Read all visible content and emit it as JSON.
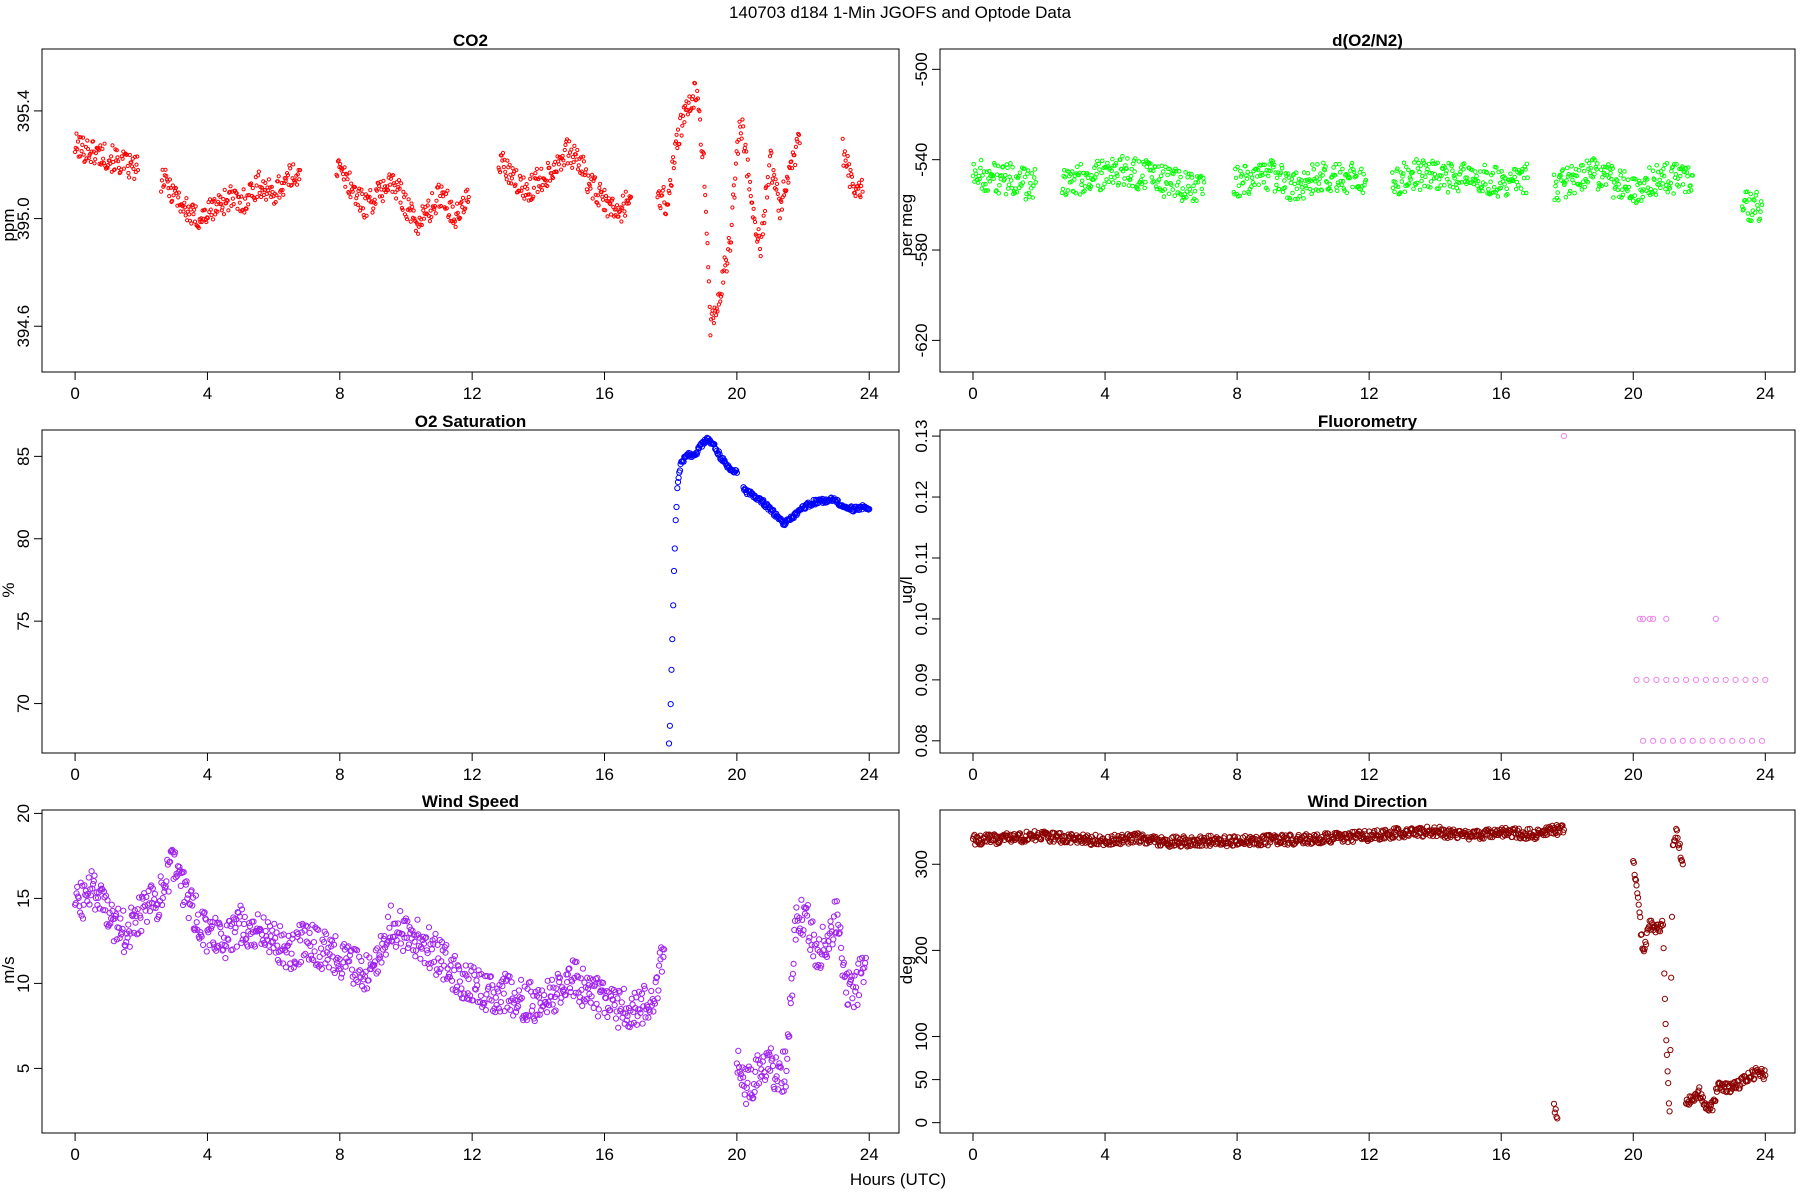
{
  "figure": {
    "title": "140703   d184   1-Min  JGOFS and Optode Data",
    "xlabel": "Hours (UTC)"
  },
  "chart_data": [
    {
      "id": "co2",
      "type": "scatter",
      "title": "CO2",
      "xlabel": "",
      "ylabel": "ppm",
      "xlim": [
        -1,
        24.9
      ],
      "ylim": [
        394.43,
        395.63
      ],
      "xticks": [
        0,
        4,
        8,
        12,
        16,
        20,
        24
      ],
      "yticks": [
        394.6,
        395.0,
        395.4
      ],
      "ytick_labels": [
        "394.6",
        "395.0",
        "395.4"
      ],
      "color": "#ff0000",
      "marker_size": 1.6,
      "series": [
        {
          "segments": [
            {
              "x": [
                0.0,
                0.5,
                1.0,
                1.5,
                1.9
              ],
              "y": [
                395.27,
                395.25,
                395.23,
                395.2,
                395.18
              ]
            },
            {
              "x": [
                2.6,
                3.0,
                3.3,
                3.6,
                3.9,
                4.3,
                4.7,
                5.0,
                5.3,
                5.6,
                5.9,
                6.2,
                6.5,
                6.8
              ],
              "y": [
                395.15,
                395.1,
                395.04,
                395.0,
                395.01,
                395.05,
                395.08,
                395.05,
                395.1,
                395.13,
                395.09,
                395.12,
                395.15,
                395.18
              ]
            },
            {
              "x": [
                7.9,
                8.3,
                8.7,
                9.1,
                9.5,
                9.9,
                10.3,
                10.7,
                11.1,
                11.5,
                11.9
              ],
              "y": [
                395.19,
                395.13,
                395.05,
                395.08,
                395.14,
                395.08,
                394.98,
                395.03,
                395.1,
                395.0,
                395.08
              ]
            },
            {
              "x": [
                12.8,
                13.2,
                13.6,
                14.0,
                14.4,
                14.8,
                15.2,
                15.6,
                16.0,
                16.4,
                16.8
              ],
              "y": [
                395.22,
                395.15,
                395.1,
                395.14,
                395.18,
                395.25,
                395.22,
                395.12,
                395.06,
                395.02,
                395.08
              ]
            },
            {
              "x": [
                17.6,
                17.9,
                18.2,
                18.5,
                18.8,
                19.0,
                19.2,
                19.5,
                19.8,
                20.1,
                20.4,
                20.7,
                21.0,
                21.3,
                21.6,
                21.9
              ],
              "y": [
                395.1,
                395.05,
                395.3,
                395.4,
                395.48,
                395.2,
                394.6,
                394.72,
                394.92,
                395.38,
                395.12,
                394.88,
                395.22,
                395.05,
                395.2,
                395.28
              ]
            },
            {
              "x": [
                23.2,
                23.5,
                23.8
              ],
              "y": [
                395.25,
                395.12,
                395.1
              ]
            }
          ]
        }
      ]
    },
    {
      "id": "o2n2",
      "type": "scatter",
      "title": "d(O2/N2)",
      "xlabel": "",
      "ylabel": "per meg",
      "xlim": [
        -1,
        24.9
      ],
      "ylim": [
        -634,
        -491
      ],
      "xticks": [
        0,
        4,
        8,
        12,
        16,
        20,
        24
      ],
      "yticks": [
        -620,
        -580,
        -540,
        -500
      ],
      "ytick_labels": [
        "-620",
        "-580",
        "-540",
        "-500"
      ],
      "color": "#00ff00",
      "marker_size": 1.8,
      "series": [
        {
          "segments": [
            {
              "x": [
                0.0,
                0.4,
                0.8,
                1.2,
                1.6,
                1.9
              ],
              "y": [
                -545,
                -547,
                -549,
                -548,
                -551,
                -550
              ]
            },
            {
              "x": [
                2.7,
                3.2,
                3.7,
                4.2,
                4.7,
                5.2,
                5.7,
                6.2,
                6.7,
                7.0
              ],
              "y": [
                -550,
                -549,
                -547,
                -546,
                -545,
                -547,
                -549,
                -551,
                -552,
                -550
              ]
            },
            {
              "x": [
                7.9,
                8.5,
                9.1,
                9.7,
                10.3,
                10.9,
                11.5,
                11.9
              ],
              "y": [
                -550,
                -548,
                -547,
                -552,
                -549,
                -547,
                -548,
                -549
              ]
            },
            {
              "x": [
                12.7,
                13.3,
                13.9,
                14.5,
                15.1,
                15.7,
                16.3,
                16.8
              ],
              "y": [
                -549,
                -547,
                -546,
                -548,
                -547,
                -550,
                -549,
                -548
              ]
            },
            {
              "x": [
                17.6,
                18.2,
                18.8,
                19.4,
                20.0,
                20.6,
                21.2,
                21.8
              ],
              "y": [
                -552,
                -548,
                -546,
                -550,
                -553,
                -549,
                -548,
                -547
              ]
            },
            {
              "x": [
                23.3,
                23.6,
                23.9
              ],
              "y": [
                -559,
                -561,
                -560
              ]
            }
          ]
        }
      ]
    },
    {
      "id": "o2sat",
      "type": "scatter",
      "title": "O2 Saturation",
      "xlabel": "",
      "ylabel": "%",
      "xlim": [
        -1,
        24.9
      ],
      "ylim": [
        67,
        86.6
      ],
      "xticks": [
        0,
        4,
        8,
        12,
        16,
        20,
        24
      ],
      "yticks": [
        70,
        75,
        80,
        85
      ],
      "ytick_labels": [
        "70",
        "75",
        "80",
        "85"
      ],
      "color": "#0000ff",
      "marker_size": 2.6,
      "series": [
        {
          "segments": [
            {
              "x": [
                17.95,
                18.0,
                18.05,
                18.1,
                18.15,
                18.2,
                18.3,
                18.5,
                18.7,
                18.9,
                19.1,
                19.3,
                19.5,
                19.8,
                20.0
              ],
              "y": [
                67.6,
                70,
                74,
                78,
                81,
                83,
                84.5,
                85.2,
                85.0,
                85.6,
                86.0,
                85.7,
                85.0,
                84.2,
                84.0
              ]
            },
            {
              "x": [
                20.2,
                20.5,
                20.8,
                21.1,
                21.4,
                21.7,
                22.0,
                22.3,
                22.6,
                22.9,
                23.2,
                23.5,
                23.8,
                24.0
              ],
              "y": [
                83.0,
                82.6,
                82.2,
                81.6,
                80.9,
                81.3,
                81.9,
                82.2,
                82.3,
                82.4,
                82.0,
                81.8,
                81.9,
                81.8
              ]
            }
          ]
        }
      ]
    },
    {
      "id": "fluor",
      "type": "scatter",
      "title": "Fluorometry",
      "xlabel": "",
      "ylabel": "ug/l",
      "xlim": [
        -1,
        24.9
      ],
      "ylim": [
        0.078,
        0.131
      ],
      "xticks": [
        0,
        4,
        8,
        12,
        16,
        20,
        24
      ],
      "yticks": [
        0.08,
        0.09,
        0.1,
        0.11,
        0.12,
        0.13
      ],
      "ytick_labels": [
        "0.08",
        "0.09",
        "0.10",
        "0.11",
        "0.12",
        "0.13"
      ],
      "color": "#ee82ee",
      "marker_size": 2.6,
      "series": [
        {
          "points": [
            {
              "x": 17.9,
              "y": 0.13
            },
            {
              "x": 20.2,
              "y": 0.1
            },
            {
              "x": 20.3,
              "y": 0.1
            },
            {
              "x": 20.5,
              "y": 0.1
            },
            {
              "x": 20.6,
              "y": 0.1
            },
            {
              "x": 21.0,
              "y": 0.1
            },
            {
              "x": 22.5,
              "y": 0.1
            },
            {
              "x": 20.1,
              "y": 0.09
            },
            {
              "x": 20.4,
              "y": 0.09
            },
            {
              "x": 20.7,
              "y": 0.09
            },
            {
              "x": 21.0,
              "y": 0.09
            },
            {
              "x": 21.3,
              "y": 0.09
            },
            {
              "x": 21.6,
              "y": 0.09
            },
            {
              "x": 21.9,
              "y": 0.09
            },
            {
              "x": 22.2,
              "y": 0.09
            },
            {
              "x": 22.5,
              "y": 0.09
            },
            {
              "x": 22.8,
              "y": 0.09
            },
            {
              "x": 23.1,
              "y": 0.09
            },
            {
              "x": 23.4,
              "y": 0.09
            },
            {
              "x": 23.7,
              "y": 0.09
            },
            {
              "x": 24.0,
              "y": 0.09
            },
            {
              "x": 20.3,
              "y": 0.08
            },
            {
              "x": 20.6,
              "y": 0.08
            },
            {
              "x": 20.9,
              "y": 0.08
            },
            {
              "x": 21.2,
              "y": 0.08
            },
            {
              "x": 21.5,
              "y": 0.08
            },
            {
              "x": 21.8,
              "y": 0.08
            },
            {
              "x": 22.1,
              "y": 0.08
            },
            {
              "x": 22.4,
              "y": 0.08
            },
            {
              "x": 22.7,
              "y": 0.08
            },
            {
              "x": 23.0,
              "y": 0.08
            },
            {
              "x": 23.3,
              "y": 0.08
            },
            {
              "x": 23.6,
              "y": 0.08
            },
            {
              "x": 23.9,
              "y": 0.08
            }
          ]
        }
      ]
    },
    {
      "id": "windspeed",
      "type": "scatter",
      "title": "Wind Speed",
      "xlabel": "",
      "ylabel": "m/s",
      "xlim": [
        -1,
        24.9
      ],
      "ylim": [
        1.2,
        20.2
      ],
      "xticks": [
        0,
        4,
        8,
        12,
        16,
        20,
        24
      ],
      "yticks": [
        5,
        10,
        15,
        20
      ],
      "ytick_labels": [
        "5",
        "10",
        "15",
        "20"
      ],
      "color": "#a020f0",
      "marker_size": 2.6,
      "series": [
        {
          "segments": [
            {
              "x": [
                0.0,
                0.5,
                1.0,
                1.5,
                2.0,
                2.5,
                3.0,
                3.5,
                4.0,
                4.5,
                5.0,
                5.5,
                6.0,
                6.5,
                7.0,
                7.5,
                8.0,
                8.5,
                9.0,
                9.5,
                10.0,
                10.5,
                11.0,
                11.5,
                12.0,
                12.5,
                13.0,
                13.5,
                14.0,
                14.5,
                15.0,
                15.5,
                16.0,
                16.5,
                17.0,
                17.5,
                17.8
              ],
              "y": [
                14.5,
                15.5,
                14.0,
                13.0,
                14.0,
                15.0,
                17.0,
                14.5,
                13.0,
                12.5,
                13.5,
                13.0,
                12.5,
                12.0,
                12.5,
                12.0,
                11.5,
                11.0,
                10.5,
                13.5,
                13.0,
                12.5,
                11.5,
                10.5,
                10.0,
                9.5,
                9.5,
                9.0,
                8.8,
                9.5,
                10.5,
                9.5,
                9.0,
                8.5,
                8.5,
                9.0,
                12.0
              ]
            },
            {
              "x": [
                20.0,
                20.3,
                20.6,
                20.9,
                21.2,
                21.5,
                21.8,
                22.1,
                22.4,
                22.7,
                23.0,
                23.3,
                23.6,
                23.9
              ],
              "y": [
                5.0,
                4.0,
                4.5,
                5.5,
                4.5,
                5.0,
                14.0,
                14.0,
                11.5,
                12.5,
                14.0,
                10.0,
                9.5,
                11.5
              ]
            }
          ]
        }
      ]
    },
    {
      "id": "winddir",
      "type": "scatter",
      "title": "Wind Direction",
      "xlabel": "",
      "ylabel": "deg",
      "xlim": [
        -1,
        24.9
      ],
      "ylim": [
        -12,
        363
      ],
      "xticks": [
        0,
        4,
        8,
        12,
        16,
        20,
        24
      ],
      "yticks": [
        0,
        50,
        100,
        200,
        300
      ],
      "ytick_labels": [
        "0",
        "50",
        "100",
        "200",
        "300"
      ],
      "color": "#8b0000",
      "marker_size": 2.6,
      "series": [
        {
          "segments": [
            {
              "x": [
                0.0,
                1.0,
                2.0,
                3.0,
                4.0,
                5.0,
                6.0,
                7.0,
                8.0,
                9.0,
                10.0,
                11.0,
                12.0,
                13.0,
                14.0,
                15.0,
                16.0,
                17.0,
                17.5,
                17.9
              ],
              "y": [
                328,
                330,
                333,
                329,
                328,
                330,
                326,
                327,
                327,
                328,
                329,
                331,
                333,
                337,
                338,
                334,
                337,
                335,
                340,
                340
              ]
            },
            {
              "x": [
                17.6,
                17.7
              ],
              "y": [
                20,
                5
              ]
            },
            {
              "x": [
                20.0,
                20.1,
                20.3,
                20.5,
                20.7,
                20.9,
                21.0,
                21.1,
                21.2,
                21.3,
                21.5
              ],
              "y": [
                300,
                280,
                195,
                230,
                225,
                230,
                90,
                10,
                320,
                340,
                300
              ]
            },
            {
              "x": [
                21.6,
                21.8,
                22.0,
                22.2,
                22.4,
                22.6,
                22.8,
                23.0,
                23.2,
                23.4,
                23.6,
                23.8,
                24.0
              ],
              "y": [
                20,
                30,
                35,
                15,
                20,
                45,
                40,
                40,
                45,
                50,
                55,
                60,
                55
              ]
            }
          ]
        }
      ]
    }
  ]
}
